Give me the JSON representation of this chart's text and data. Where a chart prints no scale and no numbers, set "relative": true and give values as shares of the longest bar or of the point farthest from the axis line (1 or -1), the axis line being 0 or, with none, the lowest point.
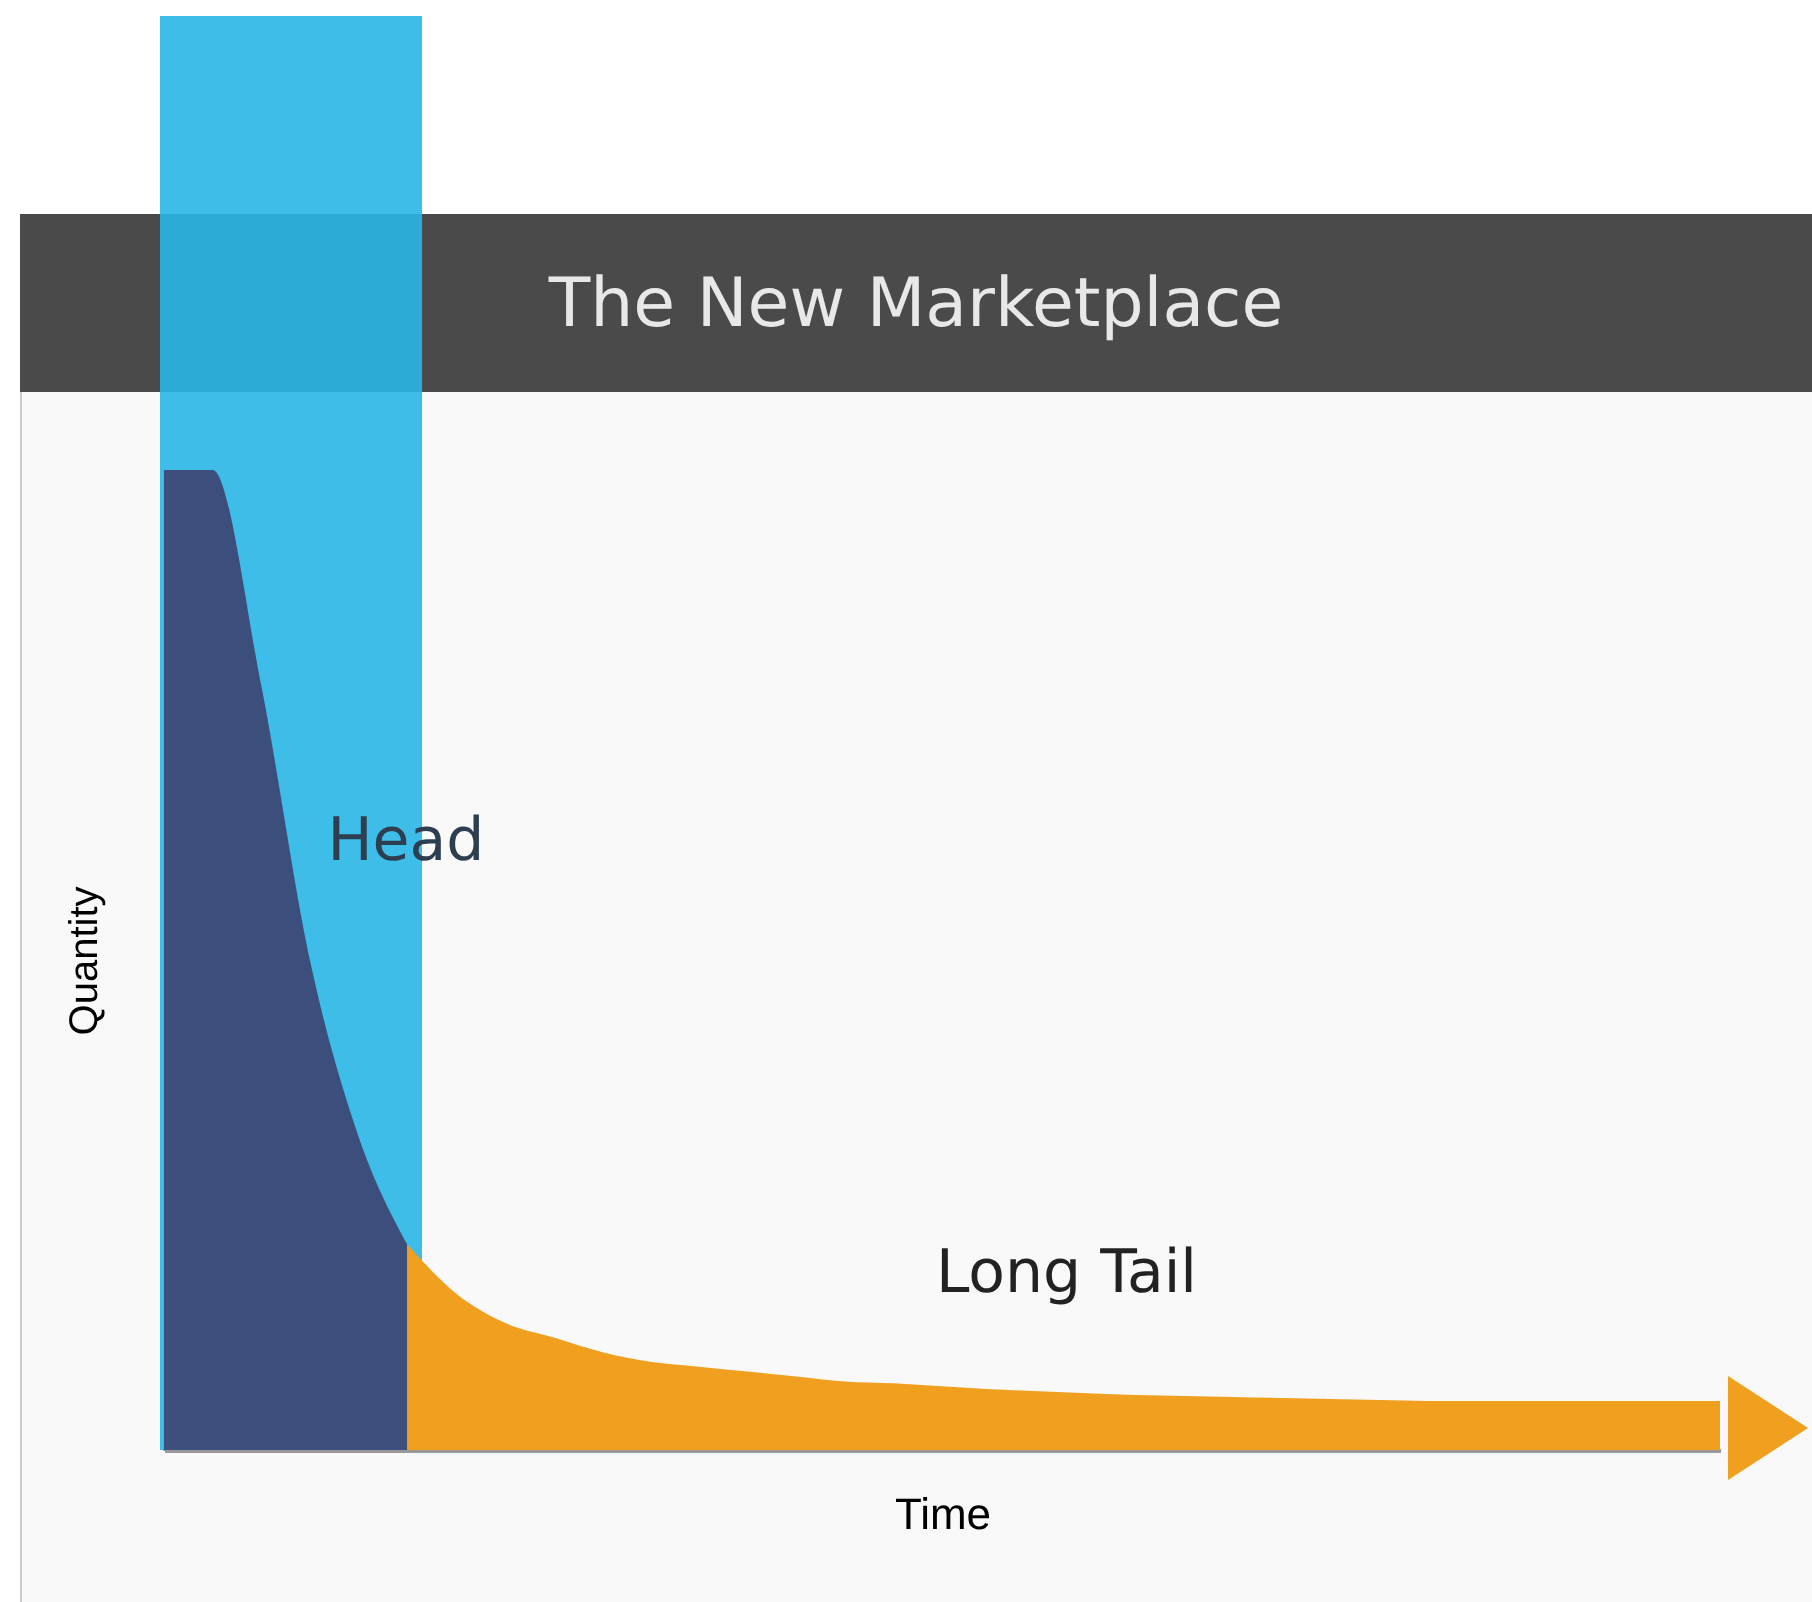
{
  "chart_data": {
    "type": "area",
    "title": "The New Marketplace",
    "xlabel": "Time",
    "ylabel": "Quantity",
    "relative": true,
    "categories": [
      null,
      null,
      null,
      null,
      null,
      null,
      null,
      null,
      null,
      null,
      null,
      null,
      null,
      null,
      null,
      null,
      null,
      null,
      null,
      null,
      null,
      null,
      null,
      null,
      null,
      null,
      null,
      null,
      null,
      null,
      null,
      null,
      null
    ],
    "series": [
      {
        "color": "#3c4f7c",
        "values": [
          1.0,
          1.0,
          0.78,
          0.5,
          0.32,
          0.21,
          null,
          null,
          null,
          null,
          null,
          null,
          null,
          null,
          null,
          null,
          null,
          null,
          null,
          null,
          null,
          null,
          null,
          null,
          null,
          null,
          null,
          null,
          null,
          null,
          null,
          null,
          null
        ]
      },
      {
        "color": "#f0a01e",
        "values": [
          null,
          null,
          null,
          null,
          null,
          0.21,
          0.16,
          0.13,
          0.115,
          0.1,
          0.09,
          0.085,
          0.08,
          0.075,
          0.07,
          0.068,
          0.065,
          0.062,
          0.06,
          0.058,
          0.056,
          0.055,
          0.054,
          0.053,
          0.052,
          0.051,
          0.05,
          0.05,
          0.05,
          0.05,
          0.05,
          0.05,
          0.05
        ]
      }
    ],
    "annotations": [
      "Head",
      "Long Tail"
    ],
    "grid": false
  }
}
